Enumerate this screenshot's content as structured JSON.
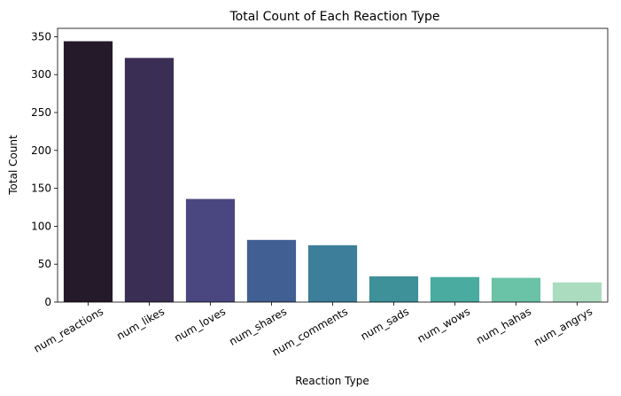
{
  "chart_data": {
    "type": "bar",
    "title": "Total Count of Each Reaction Type",
    "xlabel": "Reaction Type",
    "ylabel": "Total Count",
    "categories": [
      "num_reactions",
      "num_likes",
      "num_loves",
      "num_shares",
      "num_comments",
      "num_sads",
      "num_wows",
      "num_hahas",
      "num_angrys"
    ],
    "values": [
      344,
      322,
      136,
      82,
      75,
      34,
      33,
      32,
      26
    ],
    "colors": [
      "#241a29",
      "#3b2e54",
      "#4a4780",
      "#425f94",
      "#3d7f9b",
      "#3e9199",
      "#4aaba0",
      "#6ac2a7",
      "#acdcbf"
    ],
    "ylim": [
      0,
      361
    ],
    "yticks": [
      0,
      50,
      100,
      150,
      200,
      250,
      300,
      350
    ],
    "grid": false,
    "legend": "none"
  }
}
